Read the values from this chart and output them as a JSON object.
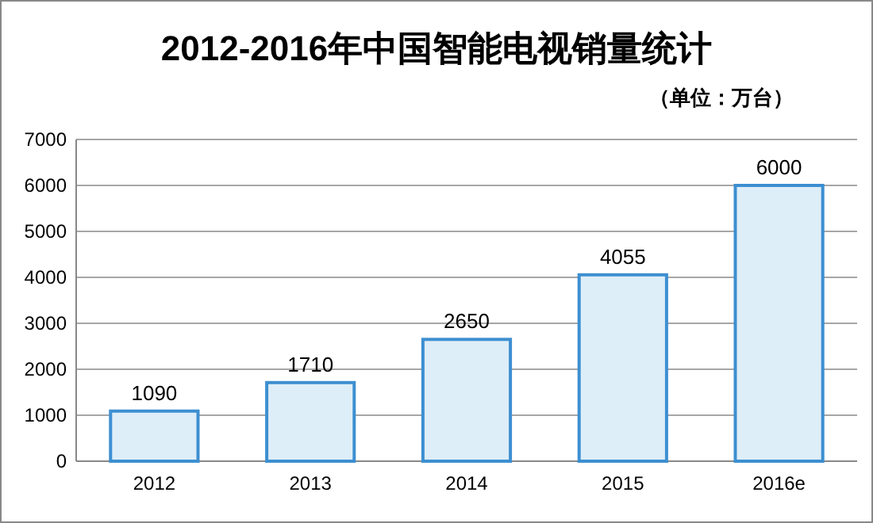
{
  "chart_data": {
    "type": "bar",
    "title": "2012-2016年中国智能电视销量统计",
    "subtitle": "（单位：万台）",
    "categories": [
      "2012",
      "2013",
      "2014",
      "2015",
      "2016e"
    ],
    "values": [
      1090,
      1710,
      2650,
      4055,
      6000
    ],
    "color": "#deeef8",
    "ylim": [
      0,
      7000
    ],
    "yticks": [
      0,
      1000,
      2000,
      3000,
      4000,
      5000,
      6000,
      7000
    ],
    "grid": "y",
    "data_labels": true
  }
}
